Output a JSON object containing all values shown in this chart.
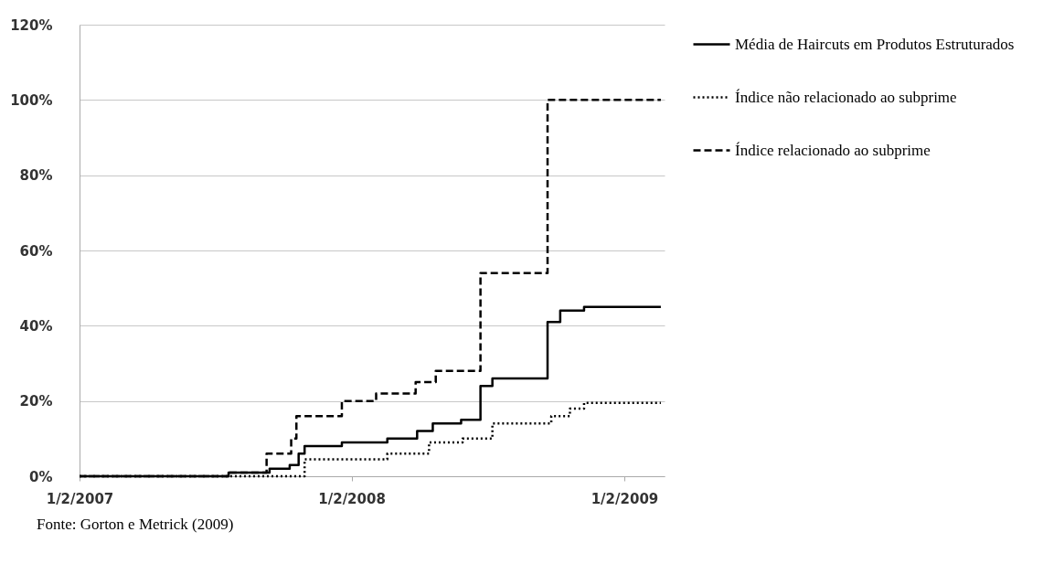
{
  "chart_data": {
    "type": "step",
    "annotations": [
      "Fonte: Gorton e Metrick (2009)"
    ],
    "xlim": [
      "2007-01-02",
      "2009-02-25"
    ],
    "xticks": [
      {
        "value": "2007-01-02",
        "label": "1/2/2007"
      },
      {
        "value": "2008-01-02",
        "label": "1/2/2008"
      },
      {
        "value": "2009-01-02",
        "label": "1/2/2009"
      }
    ],
    "ylim": [
      0,
      120
    ],
    "yticks": [
      {
        "value": 0,
        "label": "0%"
      },
      {
        "value": 20,
        "label": "20%"
      },
      {
        "value": 40,
        "label": "40%"
      },
      {
        "value": 60,
        "label": "60%"
      },
      {
        "value": 80,
        "label": "80%"
      },
      {
        "value": 100,
        "label": "100%"
      },
      {
        "value": 120,
        "label": "120%"
      }
    ],
    "grid": "y",
    "legend": "right",
    "series": [
      {
        "name": "Média de Haircuts em Produtos Estruturados",
        "color": "#000000",
        "line_style": "solid",
        "x": [
          "2007-01-02",
          "2007-07-21",
          "2007-09-14",
          "2007-10-11",
          "2007-10-23",
          "2007-10-31",
          "2007-12-20",
          "2008-02-19",
          "2008-03-30",
          "2008-04-20",
          "2008-05-28",
          "2008-06-23",
          "2008-07-09",
          "2008-09-21",
          "2008-10-08",
          "2008-11-09",
          "2009-02-20"
        ],
        "values": [
          0,
          1,
          2,
          3,
          6,
          8,
          9,
          10,
          12,
          14,
          15,
          24,
          26,
          41,
          44,
          45,
          45
        ]
      },
      {
        "name": "Índice não relacionado ao subprime",
        "color": "#000000",
        "line_style": "dotted",
        "x": [
          "2007-01-02",
          "2007-10-31",
          "2008-02-19",
          "2008-04-15",
          "2008-05-30",
          "2008-07-09",
          "2008-09-26",
          "2008-10-21",
          "2008-11-09",
          "2009-02-20"
        ],
        "values": [
          0,
          4.5,
          6,
          9,
          10,
          14,
          16,
          18,
          19.5,
          19.5
        ]
      },
      {
        "name": "Índice relacionado ao subprime",
        "color": "#000000",
        "line_style": "dashed",
        "x": [
          "2007-01-02",
          "2007-07-21",
          "2007-09-10",
          "2007-10-13",
          "2007-10-20",
          "2007-12-20",
          "2008-02-04",
          "2008-03-28",
          "2008-04-24",
          "2008-06-23",
          "2008-09-21",
          "2009-02-20"
        ],
        "values": [
          0,
          1,
          6,
          10,
          16,
          20,
          22,
          25,
          28,
          54,
          100,
          100
        ]
      }
    ]
  }
}
